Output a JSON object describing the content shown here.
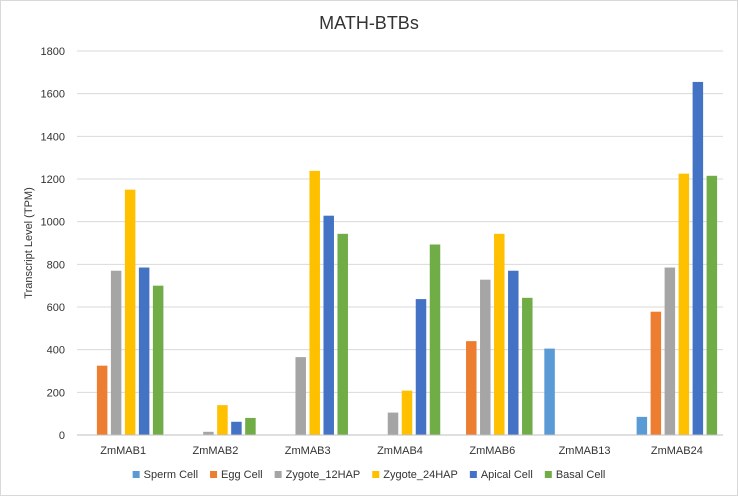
{
  "chart_data": {
    "type": "bar",
    "title": "MATH-BTBs",
    "xlabel": "",
    "ylabel": "Transcript Level (TPM)",
    "ylim": [
      0,
      1800
    ],
    "yticks": [
      0,
      200,
      400,
      600,
      800,
      1000,
      1200,
      1400,
      1600,
      1800
    ],
    "grid": true,
    "legend_position": "bottom",
    "categories": [
      "ZmMAB1",
      "ZmMAB2",
      "ZmMAB3",
      "ZmMAB4",
      "ZmMAB6",
      "ZmMAB13",
      "ZmMAB24"
    ],
    "series": [
      {
        "name": "Sperm Cell",
        "color": "#5b9bd5",
        "values": [
          0,
          0,
          0,
          0,
          0,
          405,
          85
        ]
      },
      {
        "name": "Egg Cell",
        "color": "#ed7d31",
        "values": [
          325,
          0,
          0,
          0,
          440,
          0,
          578
        ]
      },
      {
        "name": "Zygote_12HAP",
        "color": "#a5a5a5",
        "values": [
          770,
          15,
          365,
          105,
          728,
          0,
          785
        ]
      },
      {
        "name": "Zygote_24HAP",
        "color": "#ffc000",
        "values": [
          1150,
          140,
          1238,
          208,
          943,
          0,
          1225
        ]
      },
      {
        "name": "Apical Cell",
        "color": "#4472c4",
        "values": [
          785,
          62,
          1028,
          637,
          770,
          0,
          1655
        ]
      },
      {
        "name": "Basal Cell",
        "color": "#70ad47",
        "values": [
          700,
          80,
          943,
          893,
          643,
          0,
          1215
        ]
      }
    ]
  }
}
